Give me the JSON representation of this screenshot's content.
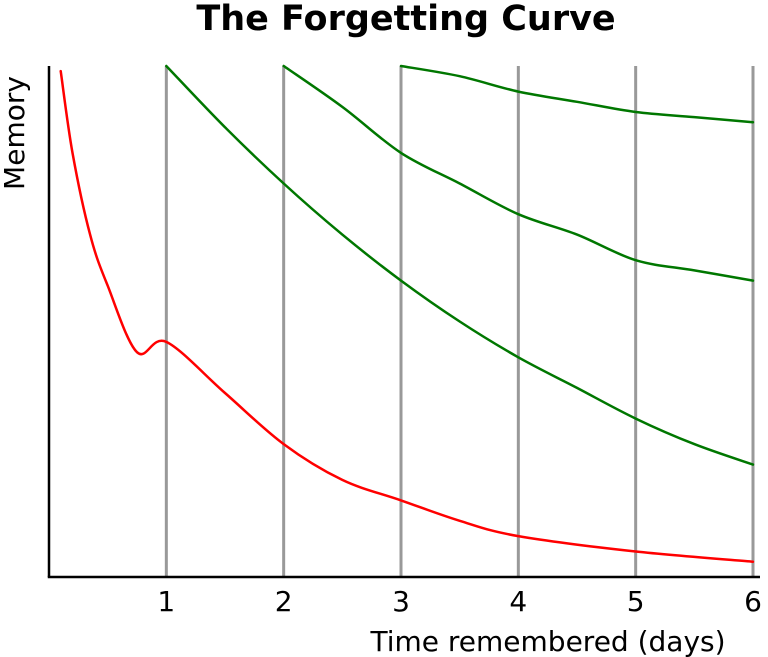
{
  "chart_data": {
    "type": "line",
    "title": "The Forgetting Curve",
    "xlabel": "Time remembered (days)",
    "ylabel": "Memory",
    "xlim": [
      0,
      6
    ],
    "ylim": [
      0,
      100
    ],
    "x_ticks": [
      "1",
      "2",
      "3",
      "4",
      "5",
      "6"
    ],
    "vertical_gridlines_at": [
      1,
      2,
      3,
      4,
      5,
      6
    ],
    "grid": "vertical only",
    "legend": "none",
    "colors": {
      "forgetting": "#ff0000",
      "review": "#007700",
      "gridline": "#999999",
      "axis": "#000000"
    },
    "series": [
      {
        "color": "#ff0000",
        "x": [
          0.1,
          0.2,
          0.35,
          0.5,
          0.75,
          1.0,
          1.5,
          2.0,
          2.5,
          3.0,
          3.5,
          4.0,
          5.0,
          6.0
        ],
        "values": [
          99,
          83,
          67,
          57,
          44,
          46,
          36,
          26,
          19,
          15,
          11,
          8,
          5,
          3
        ]
      },
      {
        "color": "#007700",
        "x": [
          1.0,
          1.5,
          2.0,
          2.5,
          3.0,
          3.5,
          4.0,
          4.5,
          5.0,
          5.5,
          6.0
        ],
        "values": [
          100,
          88,
          77,
          67,
          58,
          50,
          43,
          37,
          31,
          26,
          22
        ]
      },
      {
        "color": "#007700",
        "x": [
          2.0,
          2.5,
          3.0,
          3.5,
          4.0,
          4.5,
          5.0,
          5.5,
          6.0
        ],
        "values": [
          100,
          92,
          83,
          77,
          71,
          67,
          62,
          60,
          58
        ]
      },
      {
        "color": "#007700",
        "x": [
          3.0,
          3.5,
          4.0,
          4.5,
          5.0,
          5.5,
          6.0
        ],
        "values": [
          100,
          98,
          95,
          93,
          91,
          90,
          89
        ]
      }
    ]
  }
}
